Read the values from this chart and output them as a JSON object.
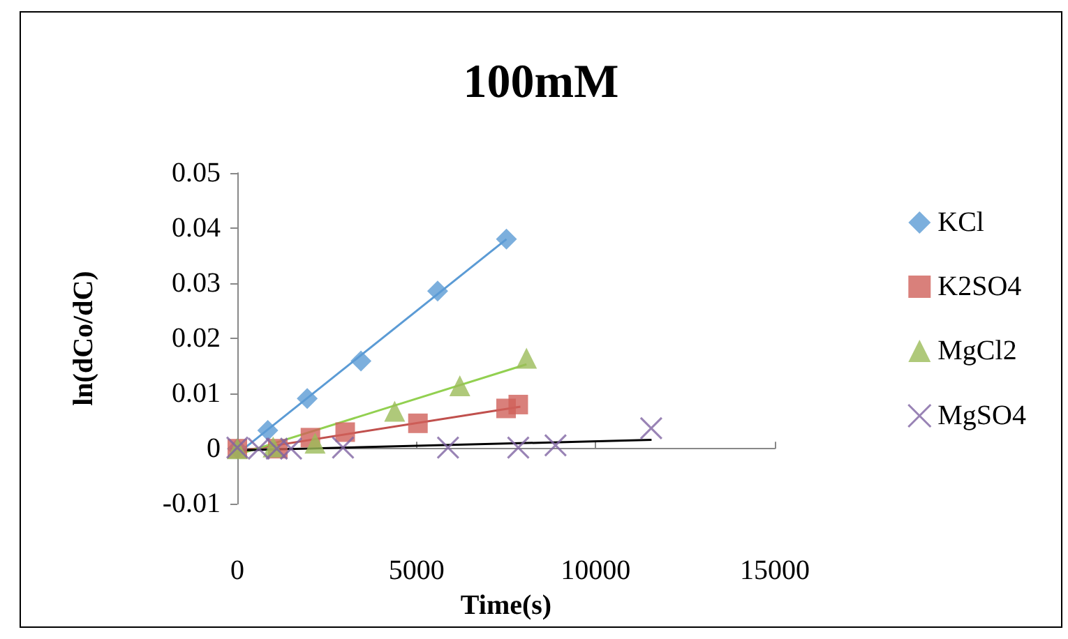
{
  "chart_data": {
    "type": "scatter",
    "title": "100mM",
    "xlabel": "Time(s)",
    "ylabel": "ln(dCo/dC)",
    "xlim": [
      0,
      15000
    ],
    "xticks": [
      0,
      5000,
      10000,
      15000
    ],
    "ylim": [
      -0.01,
      0.05
    ],
    "yticks": [
      -0.01,
      0,
      0.01,
      0.02,
      0.03,
      0.04,
      0.05
    ],
    "legend": "right",
    "series": [
      {
        "name": "KCl",
        "color": "#5b9bd5",
        "marker": "diamond",
        "x": [
          0,
          850,
          1950,
          3450,
          5590,
          7510
        ],
        "values": [
          0,
          0.0033,
          0.0091,
          0.0159,
          0.0286,
          0.038
        ]
      },
      {
        "name": "K2SO4",
        "color": "#d0605a",
        "marker": "square",
        "x": [
          0,
          1130,
          2040,
          3010,
          5040,
          7500,
          7840
        ],
        "values": [
          0,
          0,
          0.002,
          0.003,
          0.0046,
          0.0073,
          0.008
        ]
      },
      {
        "name": "MgCl2",
        "color": "#9bbb59",
        "marker": "triangle",
        "x": [
          0,
          1000,
          2170,
          4390,
          6210,
          8070
        ],
        "values": [
          0,
          0.0003,
          0.001,
          0.0068,
          0.0114,
          0.0164
        ]
      },
      {
        "name": "MgSO4",
        "color": "#8064a2",
        "marker": "cross",
        "x": [
          0,
          600,
          1100,
          1500,
          2950,
          5880,
          7840,
          8880,
          11550
        ],
        "values": [
          0.0002,
          0,
          0,
          0,
          0.0002,
          0.0002,
          0.0002,
          0.0006,
          0.0037
        ]
      },
      {
        "type": "line",
        "color": "#5b9bd5",
        "x": [
          220,
          7510
        ],
        "values": [
          0.0002,
          0.038
        ]
      },
      {
        "type": "line",
        "color": "#c0504d",
        "x": [
          0,
          7900
        ],
        "values": [
          -0.0005,
          0.0076
        ]
      },
      {
        "type": "line",
        "color": "#92d050",
        "x": [
          0,
          8070
        ],
        "values": [
          -0.0011,
          0.0153
        ]
      },
      {
        "type": "line",
        "color": "#000000",
        "x": [
          90,
          11560
        ],
        "values": [
          -0.0003,
          0.0016
        ]
      }
    ]
  }
}
